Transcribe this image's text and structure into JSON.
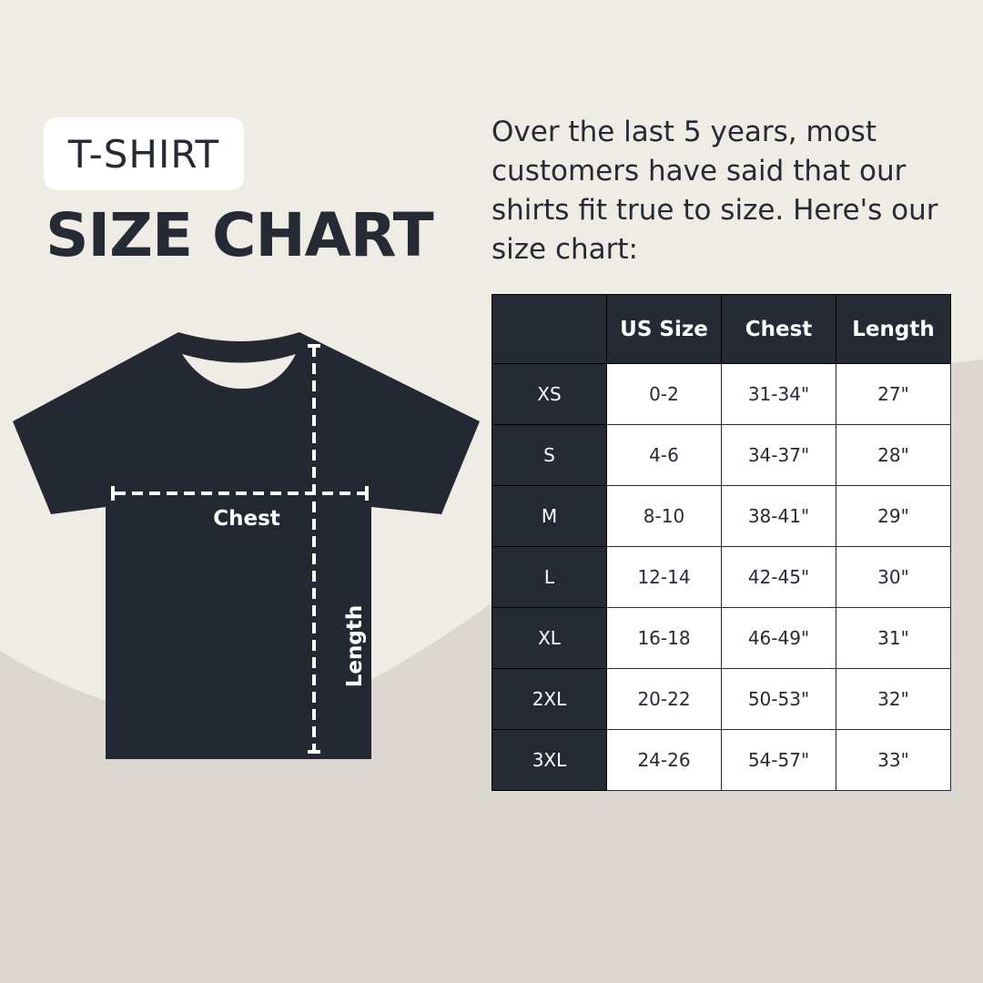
{
  "badge": "T-SHIRT",
  "title": "SIZE CHART",
  "intro": "Over the last 5 years, most customers have said that our shirts fit true to size. Here's our size chart:",
  "diagram": {
    "chest_label": "Chest",
    "length_label": "Length"
  },
  "colors": {
    "dark": "#242833",
    "background": "#efebe5",
    "background_wave": "#dcd7d0"
  },
  "table": {
    "headers": [
      "",
      "US Size",
      "Chest",
      "Length"
    ],
    "rows": [
      [
        "XS",
        "0-2",
        "31-34\"",
        "27\""
      ],
      [
        "S",
        "4-6",
        "34-37\"",
        "28\""
      ],
      [
        "M",
        "8-10",
        "38-41\"",
        "29\""
      ],
      [
        "L",
        "12-14",
        "42-45\"",
        "30\""
      ],
      [
        "XL",
        "16-18",
        "46-49\"",
        "31\""
      ],
      [
        "2XL",
        "20-22",
        "50-53\"",
        "32\""
      ],
      [
        "3XL",
        "24-26",
        "54-57\"",
        "33\""
      ]
    ]
  }
}
